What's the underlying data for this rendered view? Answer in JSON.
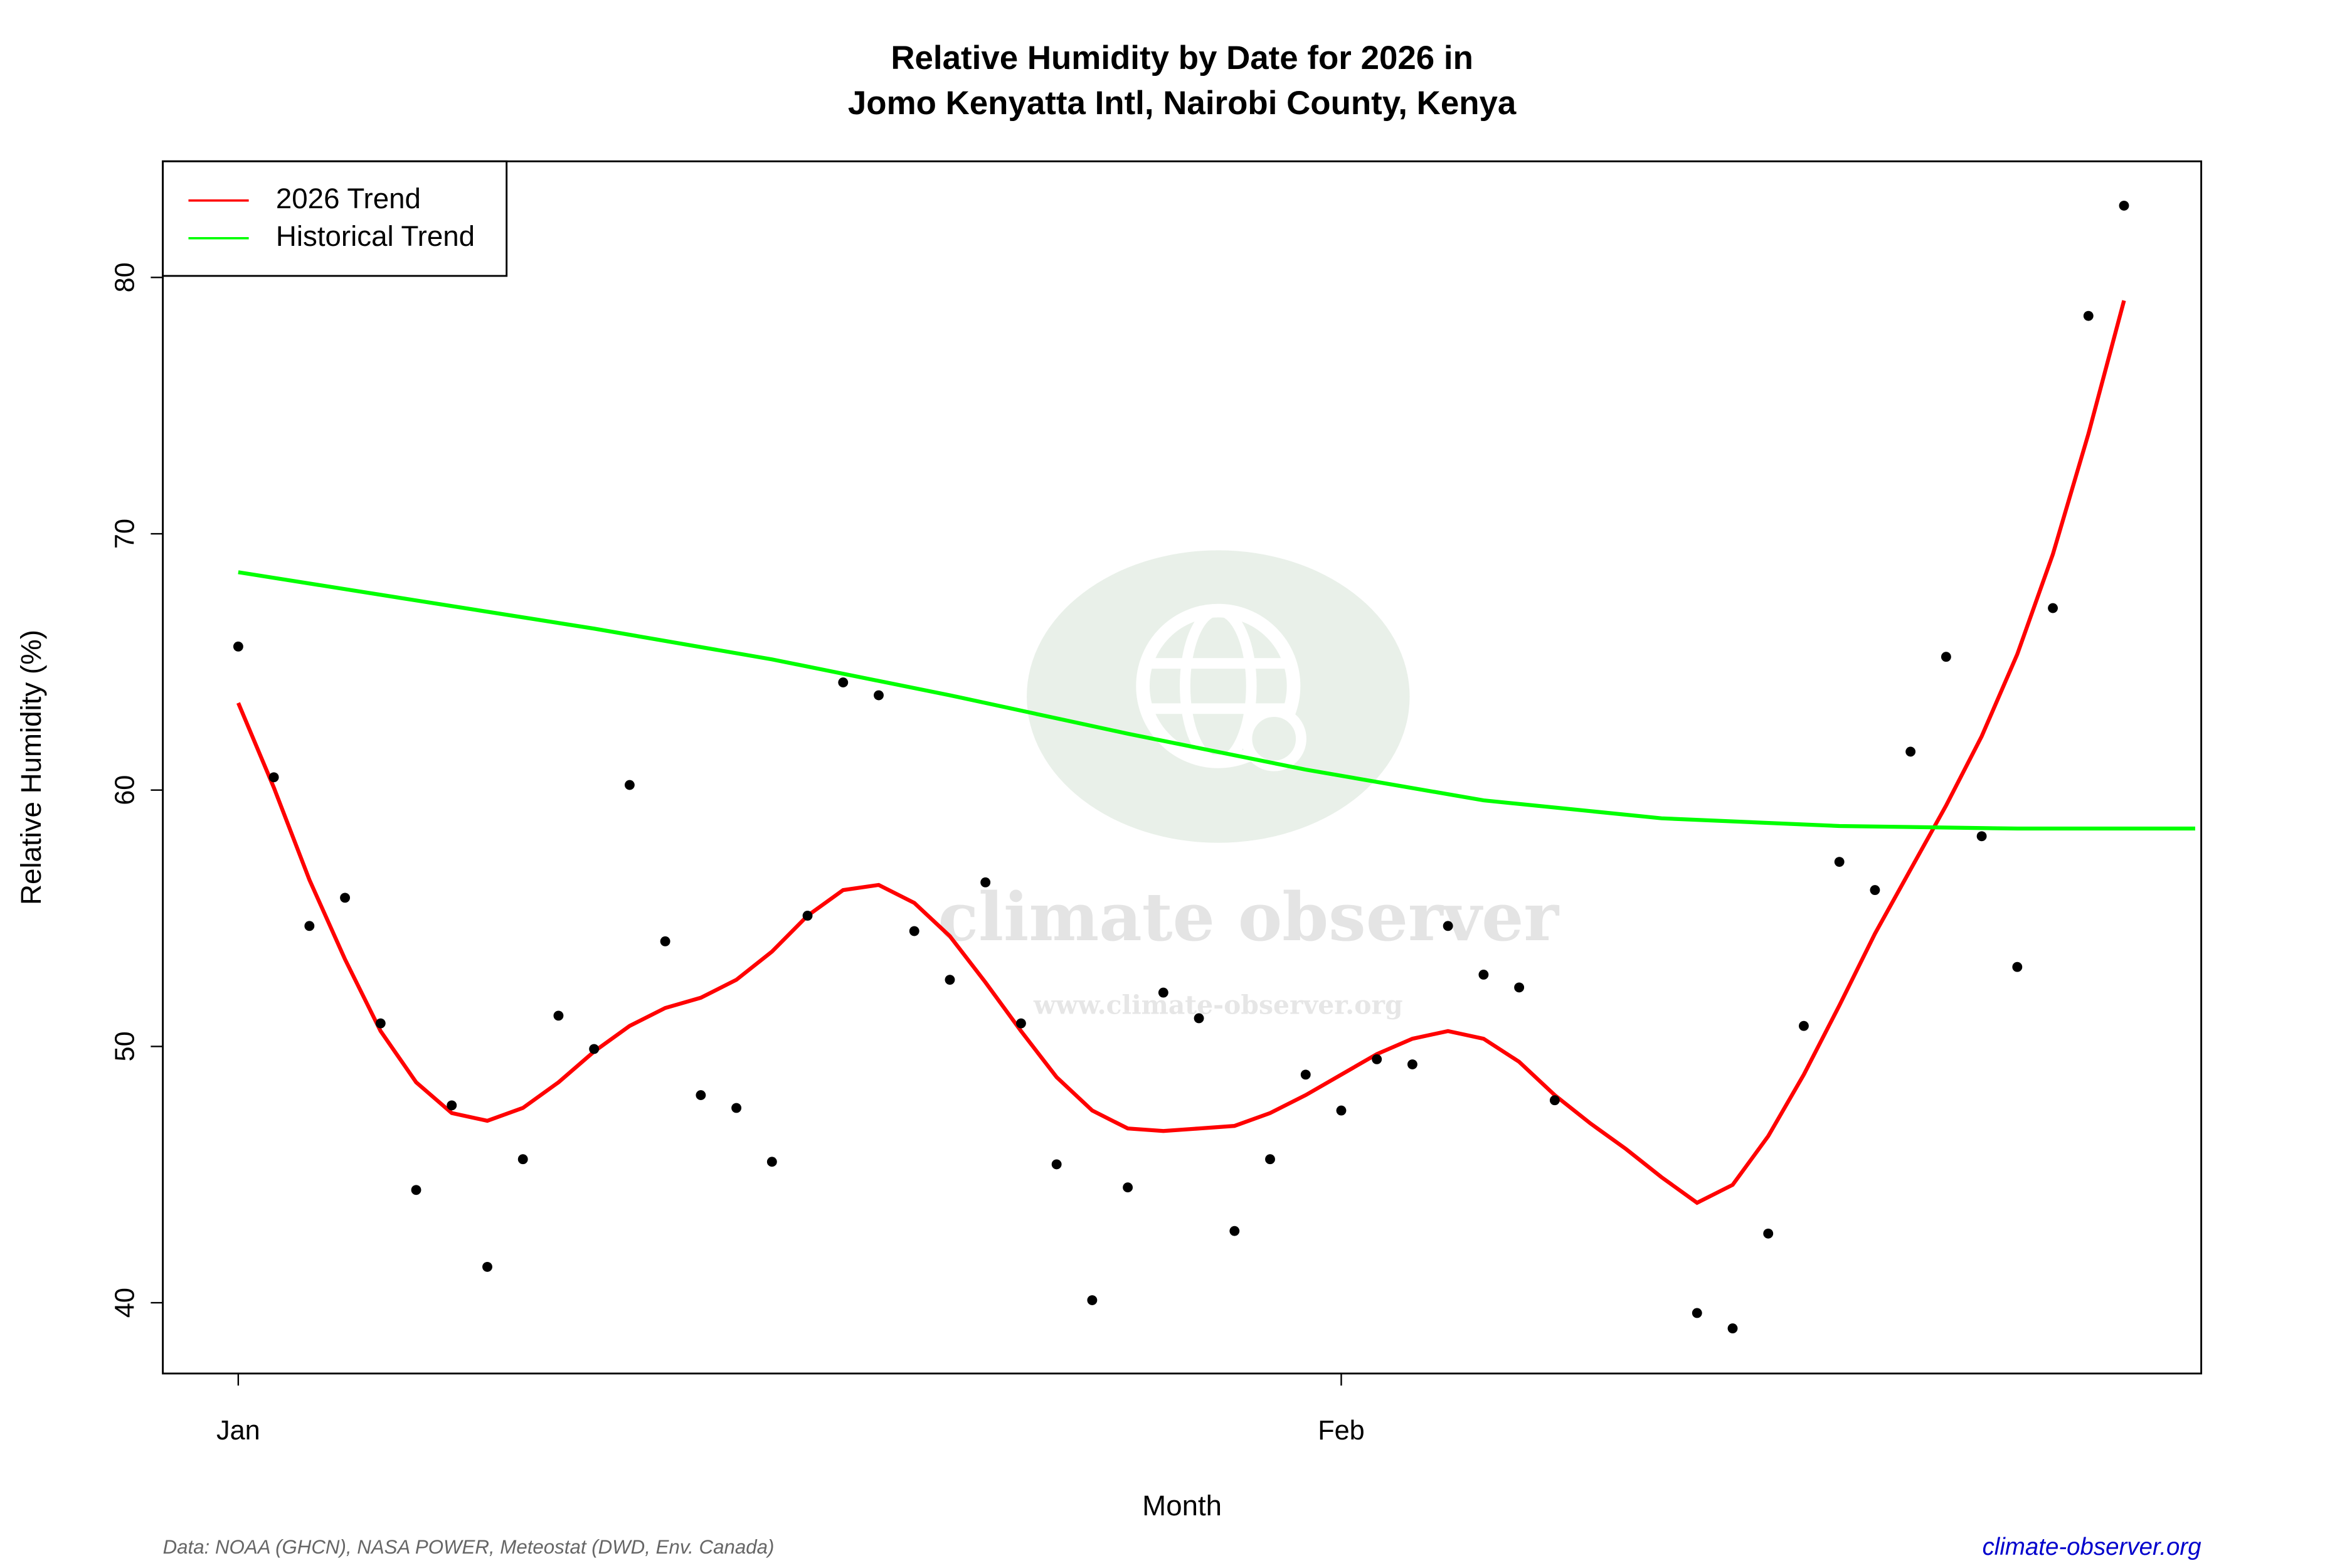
{
  "chart_data": {
    "type": "scatter",
    "title": [
      "Relative Humidity by Date for 2026 in",
      "Jomo Kenyatta Intl, Nairobi County, Kenya"
    ],
    "xlabel": "Month",
    "ylabel": "Relative Humidity (%)",
    "source": "Data: NOAA (GHCN), NASA POWER, Meteostat (DWD, Env. Canada)",
    "credit": "climate-observer.org",
    "watermark": [
      "climate observer",
      "www.climate-observer.org"
    ],
    "xlim": [
      -1.12,
      56.17
    ],
    "ylim": [
      37.24,
      84.53
    ],
    "xticks": [
      {
        "value": 1,
        "label": "Jan"
      },
      {
        "value": 32,
        "label": "Feb"
      }
    ],
    "yticks": [
      40,
      50,
      60,
      70,
      80
    ],
    "legend": "top-left",
    "points": {
      "color": "#000000",
      "x": [
        1,
        2,
        3,
        4,
        5,
        6,
        7,
        8,
        9,
        10,
        11,
        12,
        13,
        14,
        15,
        16,
        17,
        18,
        19,
        20,
        21,
        22,
        23,
        24,
        25,
        26,
        27,
        28,
        29,
        30,
        31,
        32,
        33,
        34,
        35,
        36,
        37,
        38,
        42,
        43,
        44,
        45,
        46,
        47,
        48,
        49,
        50,
        51,
        52,
        53,
        54
      ],
      "values": [
        65.6,
        60.5,
        54.7,
        55.8,
        50.9,
        44.4,
        47.7,
        41.4,
        45.6,
        51.2,
        49.9,
        60.2,
        54.1,
        48.1,
        47.6,
        45.5,
        55.1,
        64.2,
        63.7,
        54.5,
        52.6,
        56.4,
        50.9,
        45.4,
        40.1,
        44.5,
        52.1,
        51.1,
        42.8,
        45.6,
        48.9,
        47.5,
        49.5,
        49.3,
        54.7,
        52.8,
        52.3,
        47.9,
        39.6,
        39.0,
        42.7,
        50.8,
        57.2,
        56.1,
        61.5,
        65.2,
        58.2,
        53.1,
        67.1,
        78.5,
        82.8
      ]
    },
    "series": [
      {
        "name": "2026 Trend",
        "color": "#ff0000",
        "x": [
          1,
          2,
          3,
          4,
          5,
          6,
          7,
          8,
          9,
          10,
          11,
          12,
          13,
          14,
          15,
          16,
          17,
          18,
          19,
          20,
          21,
          22,
          23,
          24,
          25,
          26,
          27,
          28,
          29,
          30,
          31,
          32,
          33,
          34,
          35,
          36,
          37,
          38,
          39,
          40,
          41,
          42,
          43,
          44,
          45,
          46,
          47,
          48,
          49,
          50,
          51,
          52,
          53,
          54
        ],
        "values": [
          63.4,
          60.1,
          56.5,
          53.4,
          50.6,
          48.6,
          47.4,
          47.1,
          47.6,
          48.6,
          49.8,
          50.8,
          51.5,
          51.9,
          52.6,
          53.7,
          55.1,
          56.1,
          56.3,
          55.6,
          54.3,
          52.5,
          50.6,
          48.8,
          47.5,
          46.8,
          46.7,
          46.8,
          46.9,
          47.4,
          48.1,
          48.9,
          49.7,
          50.3,
          50.6,
          50.3,
          49.4,
          48.1,
          47.0,
          46.0,
          44.9,
          43.9,
          44.6,
          46.5,
          48.9,
          51.6,
          54.4,
          56.9,
          59.4,
          62.1,
          65.3,
          69.2,
          73.9,
          79.1
        ]
      },
      {
        "name": "Historical Trend",
        "color": "#00ff00",
        "x": [
          1,
          6,
          11,
          16,
          21,
          26,
          31,
          36,
          41,
          46,
          51,
          56
        ],
        "values": [
          68.5,
          67.4,
          66.3,
          65.1,
          63.7,
          62.2,
          60.8,
          59.6,
          58.9,
          58.6,
          58.5,
          58.5
        ]
      }
    ]
  }
}
